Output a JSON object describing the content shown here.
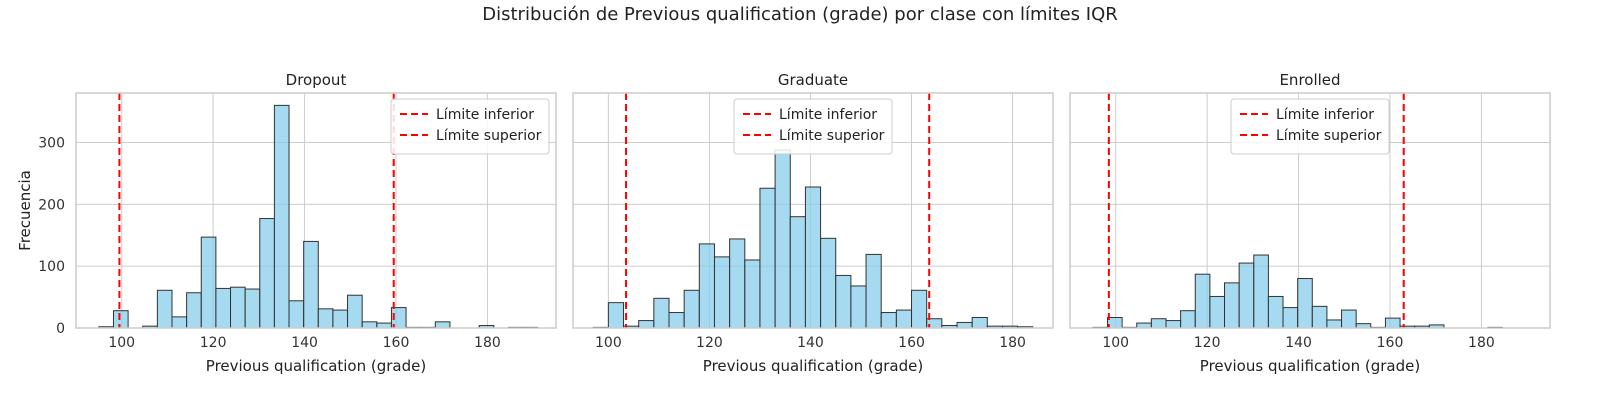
{
  "figure": {
    "title": "Distribución de Previous qualification (grade) por clase con límites IQR",
    "shared_ylabel": "Frecuencia"
  },
  "colors": {
    "bar_fill": "#87ceeb",
    "bar_edge": "#333333",
    "iqr_line": "#ff0000",
    "grid": "#cccccc",
    "frame": "#cccccc"
  },
  "chart_data": [
    {
      "type": "bar",
      "title": "Dropout",
      "xlabel": "Previous qualification (grade)",
      "ylabel": "Frecuencia",
      "xlim": [
        90,
        195
      ],
      "ylim": [
        0,
        380
      ],
      "xticks": [
        100,
        120,
        140,
        160,
        180
      ],
      "yticks": [
        0,
        100,
        200,
        300
      ],
      "grid": true,
      "legend_position": "top-right",
      "legend": [
        "Límite inferior",
        "Límite superior"
      ],
      "bin_edges": [
        95,
        98.2,
        101.4,
        104.6,
        107.8,
        111,
        114.2,
        117.4,
        120.6,
        123.8,
        127,
        130.2,
        133.4,
        136.6,
        139.8,
        143,
        146.2,
        149.4,
        152.6,
        155.8,
        159,
        162.2,
        165.4,
        168.6,
        171.8,
        175,
        178.2,
        181.4,
        184.6,
        187.8,
        191
      ],
      "values": [
        2,
        28,
        0,
        3,
        61,
        18,
        57,
        147,
        64,
        66,
        63,
        177,
        360,
        44,
        140,
        31,
        29,
        53,
        10,
        8,
        33,
        1,
        1,
        10,
        0,
        0,
        4,
        0,
        1,
        1
      ],
      "iqr_limits": {
        "lower": 99.5,
        "upper": 159.5
      }
    },
    {
      "type": "bar",
      "title": "Graduate",
      "xlabel": "Previous qualification (grade)",
      "ylabel": "",
      "xlim": [
        93,
        188
      ],
      "ylim": [
        0,
        380
      ],
      "xticks": [
        100,
        120,
        140,
        160,
        180
      ],
      "yticks": [
        0,
        100,
        200,
        300
      ],
      "grid": true,
      "legend_position": "top-center",
      "legend": [
        "Límite inferior",
        "Límite superior"
      ],
      "bin_edges": [
        97,
        100,
        103,
        106,
        109,
        112,
        115,
        118,
        121,
        124,
        127,
        130,
        133,
        136,
        139,
        142,
        145,
        148,
        151,
        154,
        157,
        160,
        163,
        166,
        169,
        172,
        175,
        178,
        181,
        184
      ],
      "values": [
        1,
        41,
        3,
        12,
        48,
        25,
        61,
        136,
        115,
        144,
        110,
        226,
        288,
        180,
        228,
        145,
        85,
        68,
        119,
        25,
        29,
        61,
        15,
        4,
        9,
        17,
        3,
        3,
        2
      ],
      "iqr_limits": {
        "lower": 103.5,
        "upper": 163.5
      }
    },
    {
      "type": "bar",
      "title": "Enrolled",
      "xlabel": "Previous qualification (grade)",
      "ylabel": "",
      "xlim": [
        90,
        195
      ],
      "ylim": [
        0,
        380
      ],
      "xticks": [
        100,
        120,
        140,
        160,
        180
      ],
      "yticks": [
        0,
        100,
        200,
        300
      ],
      "grid": true,
      "legend_position": "top-center",
      "legend": [
        "Límite inferior",
        "Límite superior"
      ],
      "bin_edges": [
        95,
        98.2,
        101.4,
        104.6,
        107.8,
        111,
        114.2,
        117.4,
        120.6,
        123.8,
        127,
        130.2,
        133.4,
        136.6,
        139.8,
        143,
        146.2,
        149.4,
        152.6,
        155.8,
        159,
        162.2,
        165.4,
        168.6,
        171.8,
        175,
        178.2,
        181.4,
        184.6,
        187.8,
        191
      ],
      "values": [
        1,
        17,
        1,
        8,
        15,
        12,
        28,
        87,
        51,
        73,
        105,
        118,
        51,
        33,
        80,
        35,
        13,
        29,
        7,
        1,
        16,
        3,
        3,
        5,
        0,
        0,
        0,
        1,
        0,
        0
      ],
      "iqr_limits": {
        "lower": 98.5,
        "upper": 163
      }
    }
  ]
}
